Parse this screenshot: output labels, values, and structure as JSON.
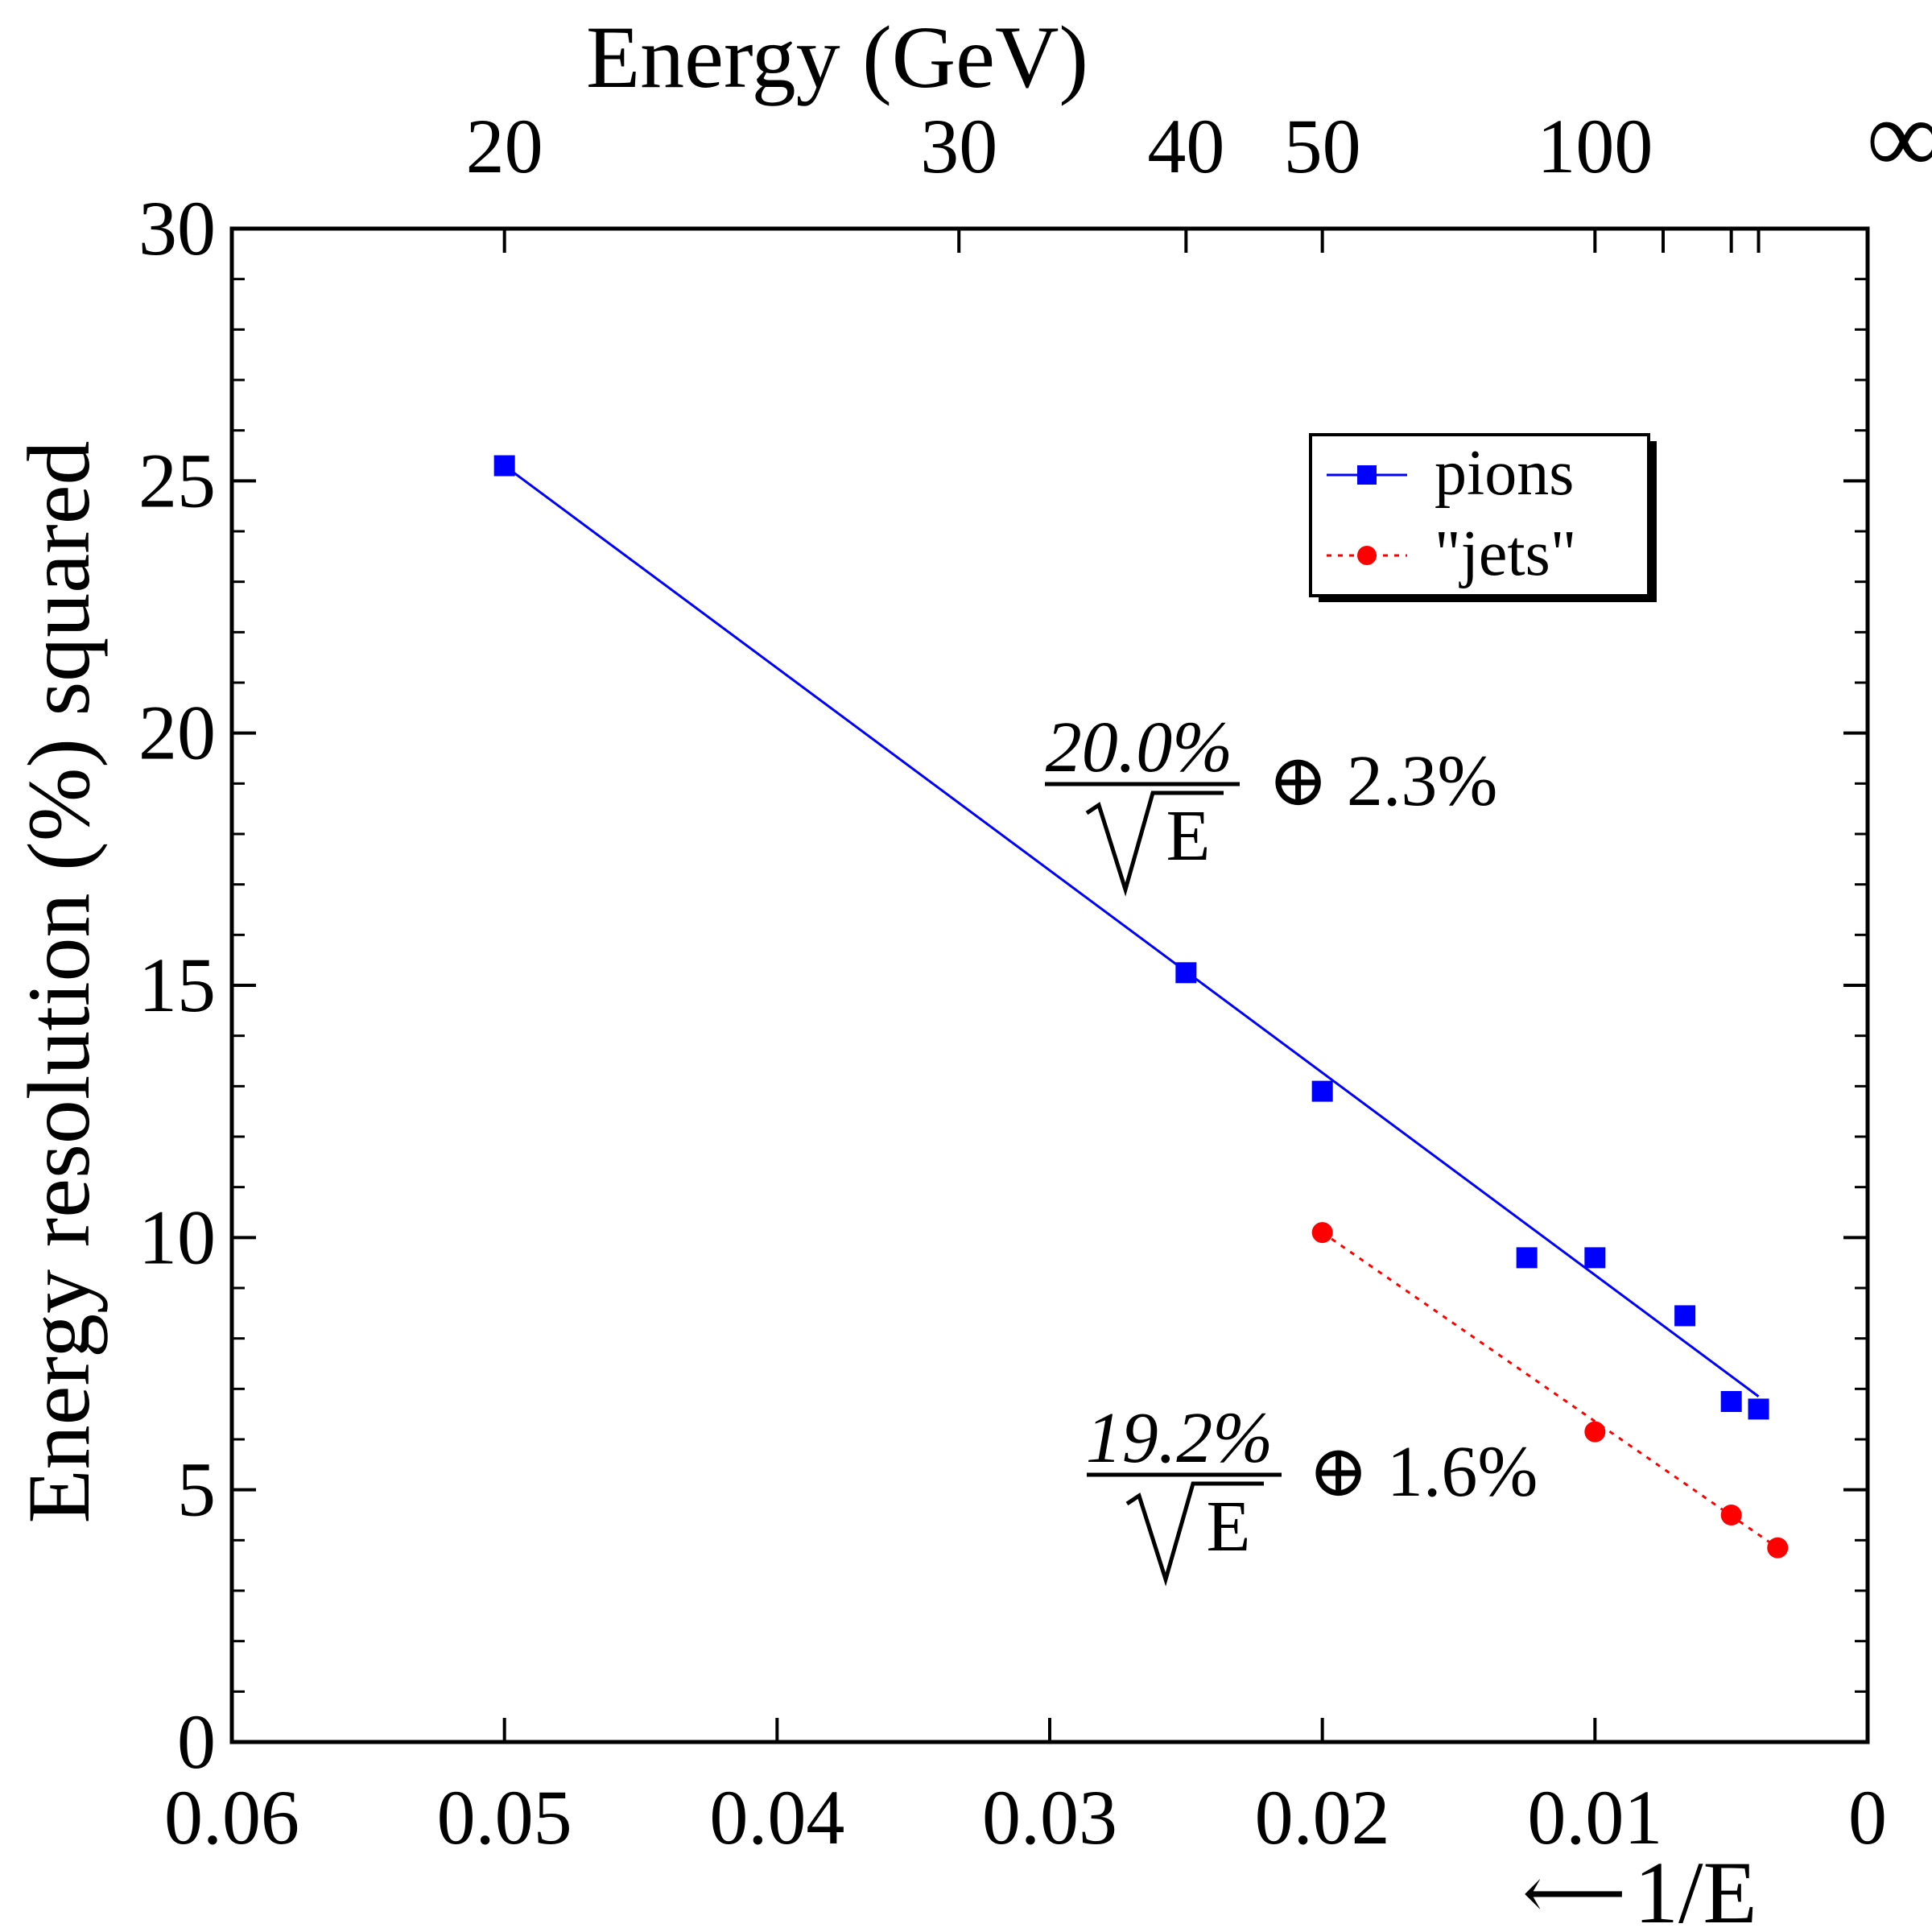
{
  "chart_data": {
    "type": "scatter",
    "top_axis": {
      "label": "Energy (GeV)",
      "ticks": [
        {
          "label": "20",
          "value": 0.05
        },
        {
          "label": "30",
          "value": 0.03333
        },
        {
          "label": "40",
          "value": 0.025
        },
        {
          "label": "50",
          "value": 0.02
        },
        {
          "label": "100",
          "value": 0.01
        },
        {
          "label": "∞",
          "value": 0
        }
      ]
    },
    "xlabel": "1/E",
    "x_arrow": "⟵",
    "ylabel": "Energy resolution (%) squared",
    "xlim": [
      0.06,
      0
    ],
    "ylim": [
      0,
      30
    ],
    "x_ticks": [
      "0.06",
      "0.05",
      "0.04",
      "0.03",
      "0.02",
      "0.01",
      "0"
    ],
    "x_tick_values": [
      0.06,
      0.05,
      0.04,
      0.03,
      0.02,
      0.01,
      0
    ],
    "y_ticks": [
      "0",
      "5",
      "10",
      "15",
      "20",
      "25",
      "30"
    ],
    "y_tick_values": [
      0,
      5,
      10,
      15,
      20,
      25,
      30
    ],
    "legend_position": "top-right",
    "series": [
      {
        "name": "pions",
        "color": "#0000ff",
        "marker": "square",
        "line": "solid",
        "points": [
          {
            "x": 0.05,
            "y": 25.3
          },
          {
            "x": 0.025,
            "y": 15.25
          },
          {
            "x": 0.02,
            "y": 12.9
          },
          {
            "x": 0.0125,
            "y": 9.6
          },
          {
            "x": 0.01,
            "y": 9.6
          },
          {
            "x": 0.0067,
            "y": 8.45
          },
          {
            "x": 0.005,
            "y": 6.75
          },
          {
            "x": 0.004,
            "y": 6.6
          }
        ],
        "fit": [
          {
            "x": 0.05,
            "y": 25.3
          },
          {
            "x": 0.004,
            "y": 6.85
          }
        ]
      },
      {
        "name": "\"jets\"",
        "color": "#ff0000",
        "marker": "circle",
        "line": "dotted",
        "points": [
          {
            "x": 0.02,
            "y": 10.1
          },
          {
            "x": 0.01,
            "y": 6.15
          },
          {
            "x": 0.005,
            "y": 4.5
          },
          {
            "x": 0.0033,
            "y": 3.85
          }
        ],
        "fit": [
          {
            "x": 0.02,
            "y": 10.1
          },
          {
            "x": 0.0033,
            "y": 3.85
          }
        ]
      }
    ],
    "annotations": [
      {
        "numerator": "20.0%",
        "denominator": "E",
        "suffix": "⊕ 2.3%"
      },
      {
        "numerator": "19.2%",
        "denominator": "E",
        "suffix": "⊕ 1.6%"
      }
    ]
  }
}
